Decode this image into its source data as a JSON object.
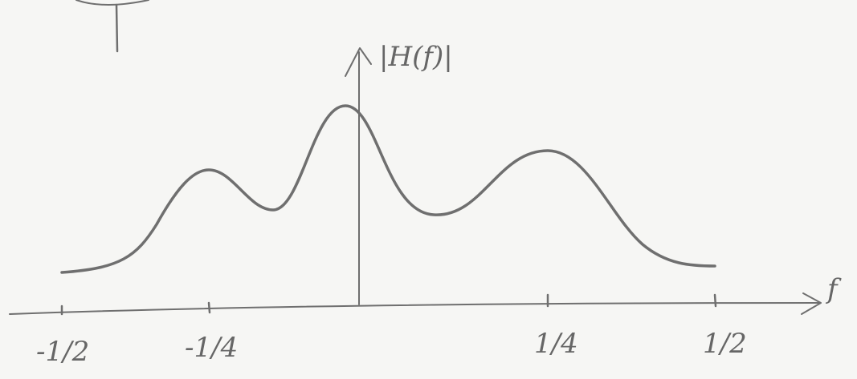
{
  "axes": {
    "y_label": "|H(f)|",
    "x_label": "f"
  },
  "x_ticks": [
    "-1/2",
    "-1/4",
    "1/4",
    "1/2"
  ]
}
